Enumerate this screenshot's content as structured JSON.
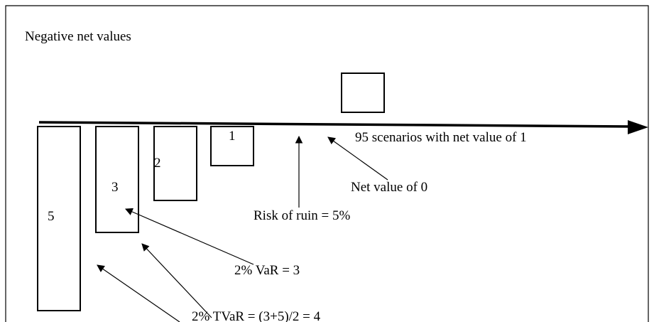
{
  "title": "Negative net values",
  "boxes": [
    {
      "label": "5"
    },
    {
      "label": "3"
    },
    {
      "label": "2"
    },
    {
      "label": "1"
    }
  ],
  "annotations": {
    "scenarios": "95 scenarios with net value of 1",
    "zero": "Net value of 0",
    "ruin": "Risk of ruin = 5%",
    "var": "2% VaR = 3",
    "tvar": "2% TVaR = (3+5)/2 = 4"
  }
}
